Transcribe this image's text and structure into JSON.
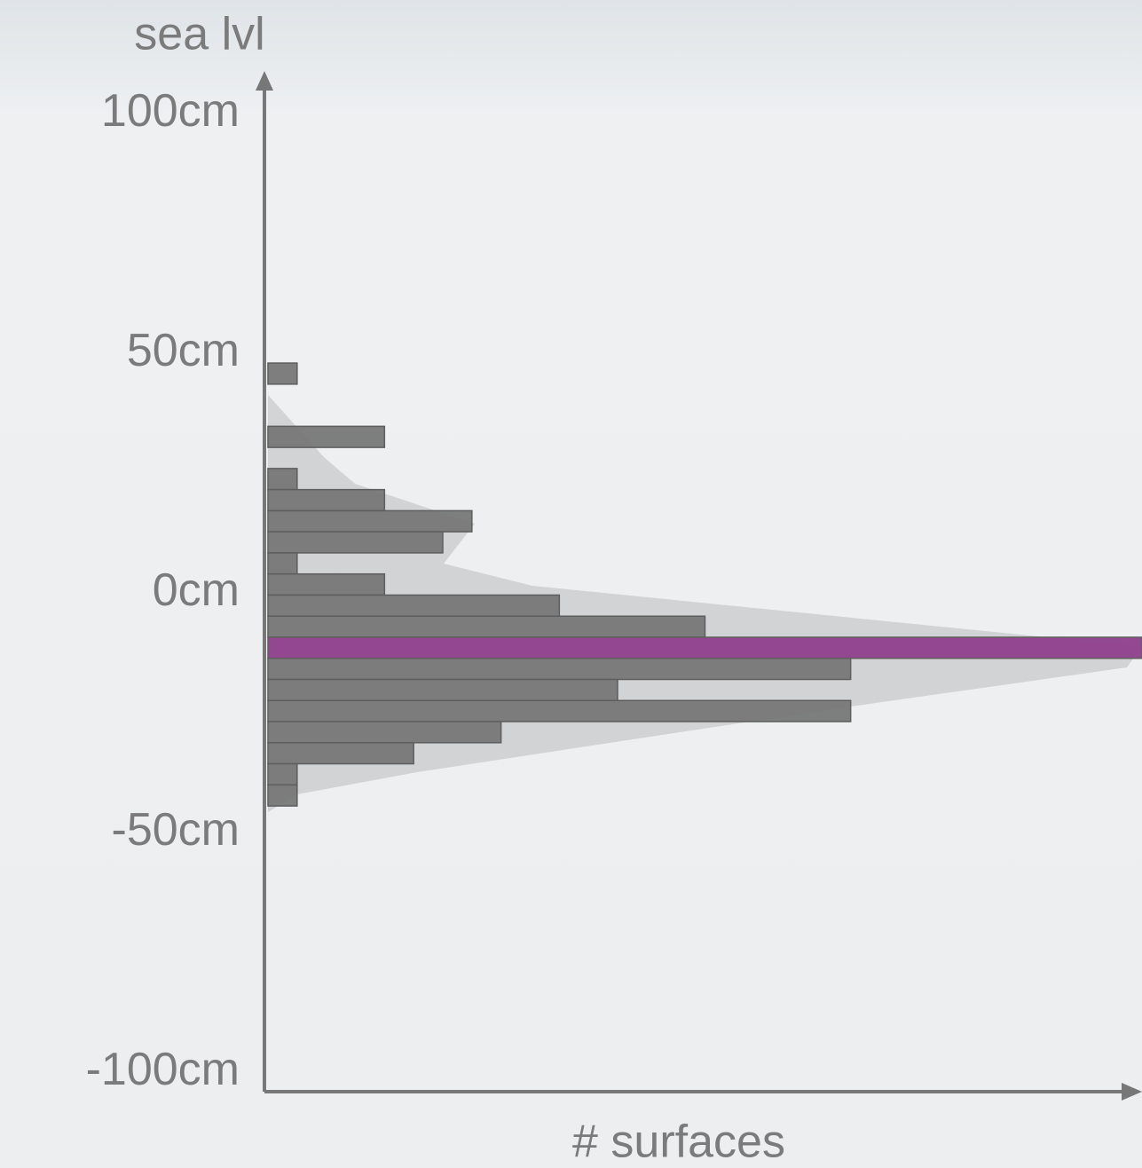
{
  "chart_data": {
    "type": "histogram",
    "orientation": "horizontal",
    "y_label": "sea lvl",
    "x_label": "# surfaces",
    "bins": [
      48,
      43.6,
      39.2,
      34.8,
      30.4,
      26,
      21.6,
      17.2,
      12.8,
      8.4,
      4,
      -0.4,
      -4.8,
      -9.2,
      -13.6,
      -18,
      -22.4,
      -26.8,
      -31.2,
      -35.6,
      -40,
      -44.4
    ],
    "values": [
      1,
      0,
      0,
      4,
      0,
      1,
      4,
      7,
      6,
      1,
      4,
      10,
      15,
      30,
      20,
      12,
      20,
      8,
      5,
      1,
      1
    ],
    "colors": [
      "#777777",
      "#777777",
      "#777777",
      "#777777",
      "#777777",
      "#777777",
      "#777777",
      "#777777",
      "#777777",
      "#777777",
      "#777777",
      "#777777",
      "#777777",
      "#8e3f8c",
      "#777777",
      "#777777",
      "#777777",
      "#777777",
      "#777777",
      "#777777",
      "#777777"
    ],
    "xlim": [
      0,
      30
    ],
    "ylim": [
      -104,
      108
    ],
    "yticks": [
      {
        "value": 100,
        "label": "100cm"
      },
      {
        "value": 50,
        "label": "50cm"
      },
      {
        "value": 0,
        "label": "0cm"
      },
      {
        "value": -50,
        "label": "-50cm"
      },
      {
        "value": -100,
        "label": "-100cm"
      }
    ],
    "grid": false
  }
}
